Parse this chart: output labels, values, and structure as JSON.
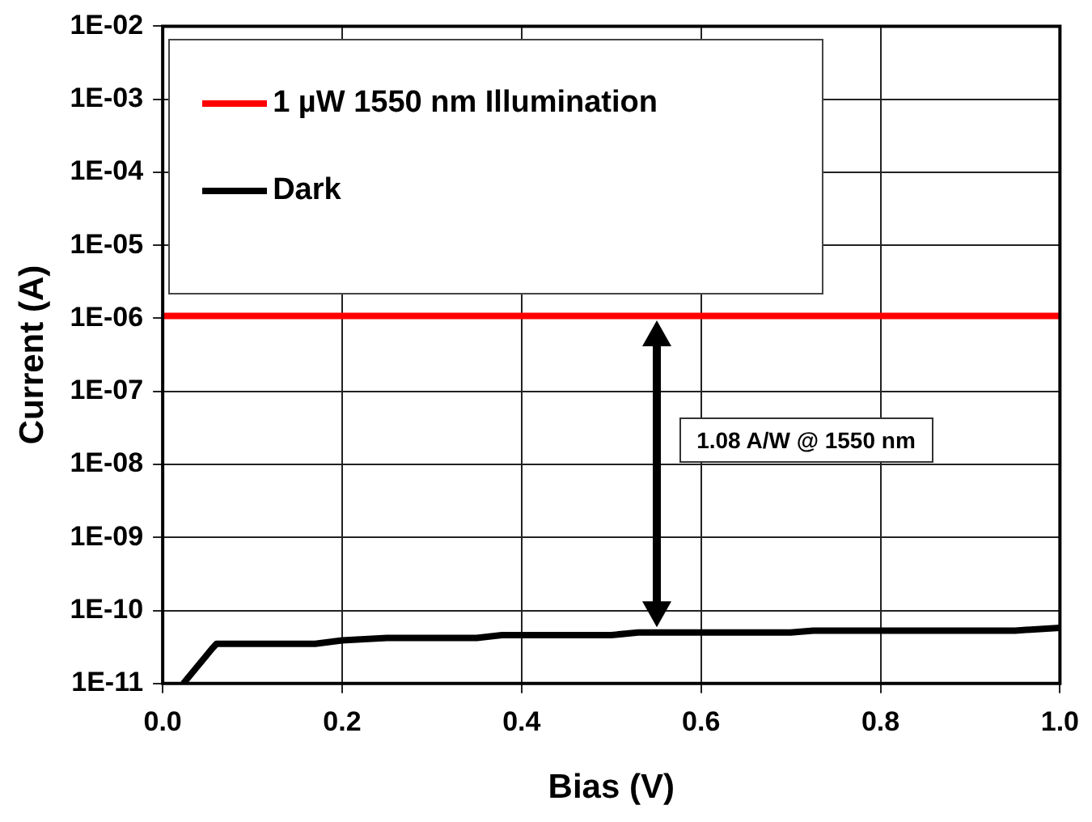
{
  "chart_data": {
    "type": "line",
    "xlabel": "Bias (V)",
    "ylabel": "Current (A)",
    "series": [
      {
        "name": "1 µW 1550 nm Illumination",
        "color": "#ff0000",
        "x": [
          0,
          1
        ],
        "values": [
          1.08e-06,
          1.08e-06
        ]
      },
      {
        "name": "Dark",
        "color": "#000000",
        "x": [
          0.023,
          0.055,
          0.06,
          0.17,
          0.2,
          0.25,
          0.35,
          0.378,
          0.5,
          0.53,
          0.7,
          0.725,
          0.95,
          1.0
        ],
        "values": [
          1e-11,
          3e-11,
          3.5e-11,
          3.5e-11,
          3.9e-11,
          4.2e-11,
          4.2e-11,
          4.6e-11,
          4.6e-11,
          5e-11,
          5e-11,
          5.3e-11,
          5.3e-11,
          5.8e-11
        ]
      }
    ],
    "xlim": [
      0,
      1
    ],
    "xticks": [
      {
        "value": 0,
        "label": "0.0"
      },
      {
        "value": 0.2,
        "label": "0.2"
      },
      {
        "value": 0.4,
        "label": "0.4"
      },
      {
        "value": 0.6,
        "label": "0.6"
      },
      {
        "value": 0.8,
        "label": "0.8"
      },
      {
        "value": 1,
        "label": "1.0"
      }
    ],
    "ylim": [
      1e-11,
      0.01
    ],
    "log": "y",
    "yticks": [
      {
        "value": 1e-11,
        "label": "1E-11"
      },
      {
        "value": 1e-10,
        "label": "1E-10"
      },
      {
        "value": 1e-09,
        "label": "1E-09"
      },
      {
        "value": 1e-08,
        "label": "1E-08"
      },
      {
        "value": 1e-07,
        "label": "1E-07"
      },
      {
        "value": 1e-06,
        "label": "1E-06"
      },
      {
        "value": 1e-05,
        "label": "1E-05"
      },
      {
        "value": 0.0001,
        "label": "1E-04"
      },
      {
        "value": 0.001,
        "label": "1E-03"
      },
      {
        "value": 0.01,
        "label": "1E-02"
      }
    ],
    "annotations": [
      "1.08 A/W  @ 1550 nm"
    ],
    "grid": true,
    "legend": "top left",
    "marker": "none",
    "line_style": "solid"
  }
}
